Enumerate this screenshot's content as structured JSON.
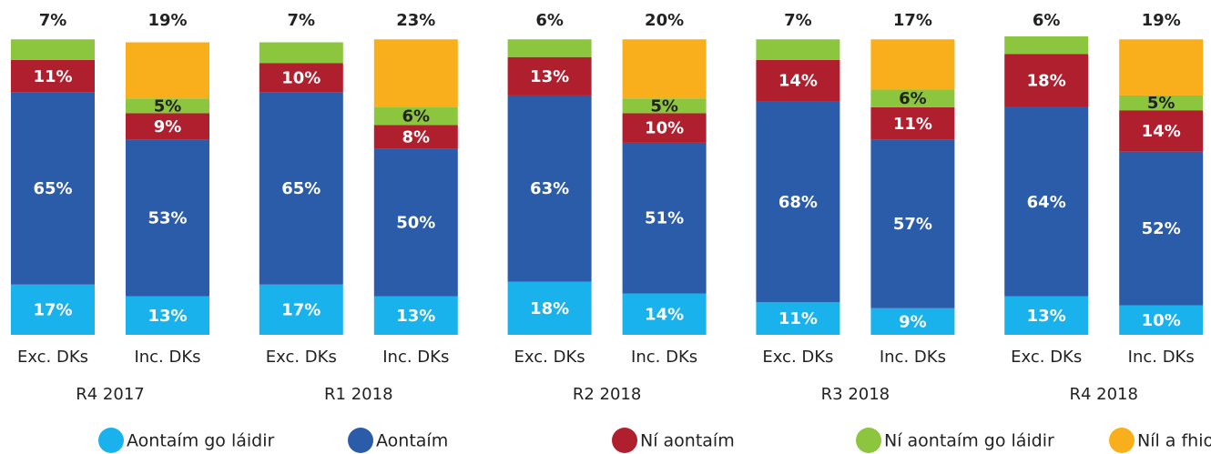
{
  "chart_data": {
    "type": "stacked_bar",
    "categories": [
      "Exc. DKs",
      "Inc. DKs",
      "Exc. DKs",
      "Inc. DKs",
      "Exc. DKs",
      "Inc. DKs",
      "Exc. DKs",
      "Inc. DKs",
      "Exc. DKs",
      "Inc. DKs"
    ],
    "groups": [
      "R4 2017",
      "R1 2018",
      "R2 2018",
      "R3 2018",
      "R4 2018"
    ],
    "series": [
      {
        "name": "Aontaím go láidir",
        "color": "#1ab2ec",
        "values": [
          17,
          13,
          17,
          13,
          18,
          14,
          11,
          9,
          13,
          10
        ],
        "value_labels": [
          "17%",
          "13%",
          "17%",
          "13%",
          "18%",
          "14%",
          "11%",
          "9%",
          "13%",
          "10%"
        ]
      },
      {
        "name": "Aontaím",
        "color": "#2b5ca9",
        "values": [
          65,
          53,
          65,
          50,
          63,
          51,
          68,
          57,
          64,
          52
        ],
        "value_labels": [
          "65%",
          "53%",
          "65%",
          "50%",
          "63%",
          "51%",
          "68%",
          "57%",
          "64%",
          "52%"
        ]
      },
      {
        "name": "Ní aontaím",
        "color": "#b01f2e",
        "values": [
          11,
          9,
          10,
          8,
          13,
          10,
          14,
          11,
          18,
          14
        ],
        "value_labels": [
          "11%",
          "9%",
          "10%",
          "8%",
          "13%",
          "10%",
          "14%",
          "11%",
          "18%",
          "14%"
        ]
      },
      {
        "name": "Ní aontaím go láidir",
        "color": "#8cc63f",
        "values": [
          7,
          5,
          7,
          6,
          6,
          5,
          7,
          6,
          6,
          5
        ],
        "value_labels": [
          "7%",
          "5%",
          "7%",
          "6%",
          "6%",
          "5%",
          "7%",
          "6%",
          "6%",
          "5%"
        ]
      },
      {
        "name": "Níl a fhios agam",
        "color": "#f9ae1b",
        "values": [
          null,
          19,
          null,
          23,
          null,
          20,
          null,
          17,
          null,
          19
        ],
        "value_labels": [
          null,
          "19%",
          null,
          "23%",
          null,
          "20%",
          null,
          "17%",
          null,
          "19%"
        ]
      }
    ]
  }
}
